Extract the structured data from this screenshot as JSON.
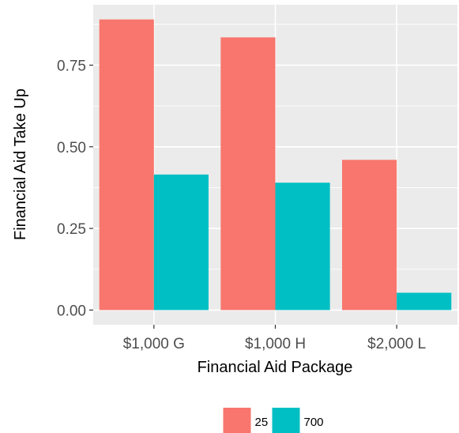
{
  "chart_data": {
    "type": "bar",
    "categories": [
      "$1,000 G",
      "$1,000 H",
      "$2,000 L"
    ],
    "series": [
      {
        "name": "25",
        "color": "#F8766D",
        "values": [
          0.89,
          0.835,
          0.46
        ]
      },
      {
        "name": "700",
        "color": "#00BFC4",
        "values": [
          0.415,
          0.39,
          0.053
        ]
      }
    ],
    "xlabel": "Financial Aid Package",
    "ylabel": "Financial Aid Take Up",
    "ylim": [
      -0.045,
      0.935
    ],
    "yticks": [
      0,
      0.25,
      0.5,
      0.75
    ],
    "ytick_labels": [
      "0.00",
      "0.25",
      "0.50",
      "0.75"
    ],
    "grid": true,
    "legend_position": "bottom",
    "panel_background": "#EBEBEB",
    "grid_color": "#FFFFFF"
  }
}
